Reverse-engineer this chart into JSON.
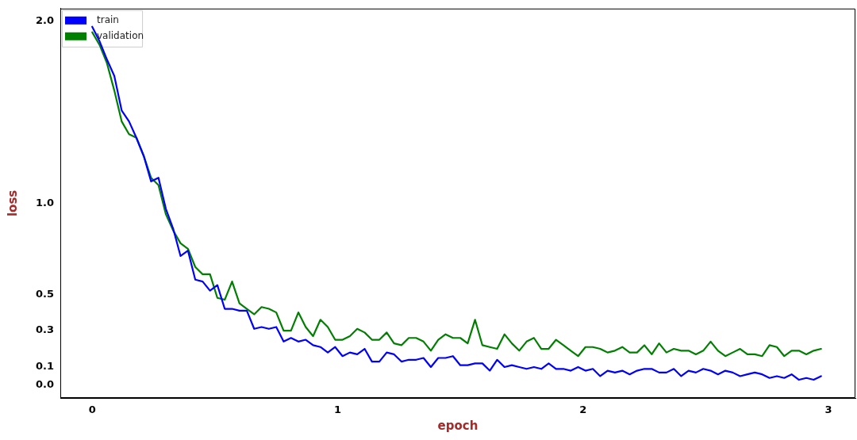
{
  "chart_data": {
    "type": "line",
    "xlabel": "epoch",
    "ylabel": "loss",
    "x": [
      0,
      0.03,
      0.06,
      0.09,
      0.12,
      0.15,
      0.18,
      0.21,
      0.24,
      0.27,
      0.3,
      0.33,
      0.36,
      0.39,
      0.42,
      0.45,
      0.48,
      0.51,
      0.54,
      0.57,
      0.6,
      0.63,
      0.66,
      0.69,
      0.72,
      0.75,
      0.78,
      0.81,
      0.84,
      0.87,
      0.9,
      0.93,
      0.96,
      0.99,
      1.02,
      1.05,
      1.08,
      1.11,
      1.14,
      1.17,
      1.2,
      1.23,
      1.26,
      1.29,
      1.32,
      1.35,
      1.38,
      1.41,
      1.44,
      1.47,
      1.5,
      1.53,
      1.56,
      1.59,
      1.62,
      1.65,
      1.68,
      1.71,
      1.74,
      1.77,
      1.8,
      1.83,
      1.86,
      1.89,
      1.92,
      1.95,
      1.98,
      2.01,
      2.04,
      2.07,
      2.1,
      2.13,
      2.16,
      2.19,
      2.22,
      2.25,
      2.28,
      2.31,
      2.34,
      2.37,
      2.4,
      2.43,
      2.46,
      2.49,
      2.52,
      2.55,
      2.58,
      2.61,
      2.64,
      2.67,
      2.7,
      2.73,
      2.76,
      2.79,
      2.82,
      2.85,
      2.88,
      2.91,
      2.94,
      2.97
    ],
    "series": [
      {
        "name": "train",
        "color": "#0000ff",
        "values": [
          1.97,
          1.89,
          1.79,
          1.7,
          1.51,
          1.45,
          1.36,
          1.26,
          1.12,
          1.14,
          0.97,
          0.86,
          0.71,
          0.74,
          0.58,
          0.57,
          0.52,
          0.55,
          0.42,
          0.42,
          0.41,
          0.41,
          0.31,
          0.32,
          0.31,
          0.32,
          0.24,
          0.26,
          0.24,
          0.25,
          0.22,
          0.21,
          0.18,
          0.21,
          0.16,
          0.18,
          0.17,
          0.2,
          0.13,
          0.13,
          0.18,
          0.17,
          0.13,
          0.14,
          0.14,
          0.15,
          0.1,
          0.15,
          0.15,
          0.16,
          0.11,
          0.11,
          0.12,
          0.12,
          0.08,
          0.14,
          0.1,
          0.11,
          0.1,
          0.09,
          0.1,
          0.09,
          0.12,
          0.09,
          0.09,
          0.08,
          0.1,
          0.08,
          0.09,
          0.05,
          0.08,
          0.07,
          0.08,
          0.06,
          0.08,
          0.09,
          0.09,
          0.07,
          0.07,
          0.09,
          0.05,
          0.08,
          0.07,
          0.09,
          0.08,
          0.06,
          0.08,
          0.07,
          0.05,
          0.06,
          0.07,
          0.06,
          0.04,
          0.05,
          0.04,
          0.06,
          0.03,
          0.04,
          0.03,
          0.05
        ]
      },
      {
        "name": "validation",
        "color": "#008000",
        "values": [
          1.94,
          1.87,
          1.77,
          1.62,
          1.45,
          1.38,
          1.36,
          1.26,
          1.14,
          1.1,
          0.94,
          0.85,
          0.78,
          0.75,
          0.65,
          0.61,
          0.61,
          0.48,
          0.47,
          0.57,
          0.45,
          0.42,
          0.39,
          0.43,
          0.42,
          0.4,
          0.3,
          0.3,
          0.4,
          0.32,
          0.27,
          0.36,
          0.32,
          0.25,
          0.25,
          0.27,
          0.31,
          0.29,
          0.25,
          0.25,
          0.29,
          0.23,
          0.22,
          0.26,
          0.26,
          0.24,
          0.19,
          0.25,
          0.28,
          0.26,
          0.26,
          0.23,
          0.36,
          0.22,
          0.21,
          0.2,
          0.28,
          0.23,
          0.19,
          0.24,
          0.26,
          0.2,
          0.2,
          0.25,
          0.22,
          0.19,
          0.16,
          0.21,
          0.21,
          0.2,
          0.18,
          0.19,
          0.21,
          0.18,
          0.18,
          0.22,
          0.17,
          0.23,
          0.18,
          0.2,
          0.19,
          0.19,
          0.17,
          0.19,
          0.24,
          0.19,
          0.16,
          0.18,
          0.2,
          0.17,
          0.17,
          0.16,
          0.22,
          0.21,
          0.16,
          0.19,
          0.19,
          0.17,
          0.19,
          0.2
        ]
      }
    ],
    "xlim": [
      -0.13,
      3.11
    ],
    "xticks": [
      0,
      1,
      2,
      3
    ],
    "ylim": [
      -0.07,
      2.07
    ],
    "yticks": [
      {
        "value": 0,
        "label": "0.0"
      },
      {
        "value": 0.1,
        "label": "0.1"
      },
      {
        "value": 0.3,
        "label": "0.3"
      },
      {
        "value": 0.5,
        "label": "0.5"
      },
      {
        "value": 1,
        "label": "1.0"
      },
      {
        "value": 2,
        "label": "2.0"
      }
    ],
    "grid": false,
    "legend": "top left",
    "marker": "none",
    "line_style": "solid"
  }
}
